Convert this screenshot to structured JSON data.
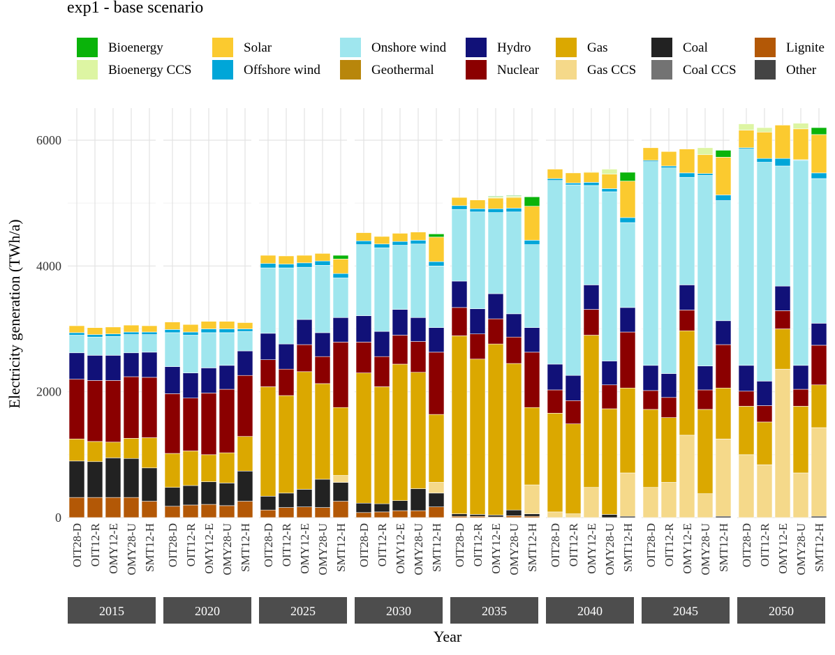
{
  "chart_data": {
    "type": "bar",
    "stacked": true,
    "title": "exp1 - base scenario",
    "xlabel": "Year",
    "ylabel": "Electricity generation (TWh/a)",
    "ylim": [
      0,
      6500
    ],
    "yticks": [
      0,
      2000,
      4000,
      6000
    ],
    "legend_position": "top",
    "facets": [
      "2015",
      "2020",
      "2025",
      "2030",
      "2035",
      "2040",
      "2045",
      "2050"
    ],
    "models": [
      "OIT28-D",
      "OIT12-R",
      "OMY12-E",
      "OMY28-U",
      "SMT12-H"
    ],
    "series": [
      {
        "name": "Lignite",
        "color": "#b35806"
      },
      {
        "name": "Coal",
        "color": "#222222"
      },
      {
        "name": "Gas CCS",
        "color": "#f5d98a"
      },
      {
        "name": "Gas",
        "color": "#dba800"
      },
      {
        "name": "Nuclear",
        "color": "#8b0000"
      },
      {
        "name": "Hydro",
        "color": "#111178"
      },
      {
        "name": "Geothermal",
        "color": "#b8860b"
      },
      {
        "name": "Onshore wind",
        "color": "#9fe6ee"
      },
      {
        "name": "Offshore wind",
        "color": "#00a6d8"
      },
      {
        "name": "Solar",
        "color": "#fbca2f"
      },
      {
        "name": "Bioenergy CCS",
        "color": "#ddf5a3"
      },
      {
        "name": "Bioenergy",
        "color": "#0ab30a"
      },
      {
        "name": "Coal CCS",
        "color": "#737373"
      },
      {
        "name": "Other",
        "color": "#444444"
      }
    ],
    "stack_order": [
      "Lignite",
      "Coal",
      "Gas CCS",
      "Gas",
      "Nuclear",
      "Hydro",
      "Onshore wind",
      "Offshore wind",
      "Solar",
      "Bioenergy CCS",
      "Bioenergy"
    ],
    "values": {
      "2015": {
        "OIT28-D": {
          "Lignite": 320,
          "Coal": 580,
          "Gas": 350,
          "Nuclear": 950,
          "Hydro": 420,
          "Onshore wind": 280,
          "Offshore wind": 40,
          "Solar": 110
        },
        "OIT12-R": {
          "Lignite": 320,
          "Coal": 570,
          "Gas": 320,
          "Nuclear": 970,
          "Hydro": 400,
          "Onshore wind": 290,
          "Offshore wind": 40,
          "Solar": 110
        },
        "OMY12-E": {
          "Lignite": 320,
          "Coal": 630,
          "Gas": 250,
          "Nuclear": 980,
          "Hydro": 400,
          "Onshore wind": 300,
          "Offshore wind": 40,
          "Solar": 110
        },
        "OMY28-U": {
          "Lignite": 320,
          "Coal": 620,
          "Gas": 320,
          "Nuclear": 980,
          "Hydro": 380,
          "Onshore wind": 290,
          "Offshore wind": 40,
          "Solar": 110
        },
        "SMT12-H": {
          "Lignite": 260,
          "Coal": 530,
          "Gas": 480,
          "Nuclear": 960,
          "Hydro": 400,
          "Onshore wind": 280,
          "Offshore wind": 40,
          "Solar": 100
        }
      },
      "2020": {
        "OIT28-D": {
          "Lignite": 180,
          "Coal": 300,
          "Gas": 540,
          "Nuclear": 950,
          "Hydro": 430,
          "Onshore wind": 540,
          "Offshore wind": 50,
          "Solar": 120
        },
        "OIT12-R": {
          "Lignite": 200,
          "Coal": 310,
          "Gas": 550,
          "Nuclear": 840,
          "Hydro": 400,
          "Onshore wind": 600,
          "Offshore wind": 50,
          "Solar": 120
        },
        "OMY12-E": {
          "Lignite": 210,
          "Coal": 360,
          "Gas": 430,
          "Nuclear": 980,
          "Hydro": 400,
          "Onshore wind": 560,
          "Offshore wind": 60,
          "Solar": 120
        },
        "OMY28-U": {
          "Lignite": 190,
          "Coal": 360,
          "Gas": 480,
          "Nuclear": 1010,
          "Hydro": 380,
          "Onshore wind": 520,
          "Offshore wind": 60,
          "Solar": 120
        },
        "SMT12-H": {
          "Lignite": 260,
          "Coal": 480,
          "Gas": 550,
          "Nuclear": 970,
          "Hydro": 390,
          "Onshore wind": 310,
          "Offshore wind": 40,
          "Solar": 100
        }
      },
      "2025": {
        "OIT28-D": {
          "Lignite": 120,
          "Coal": 220,
          "Gas": 1740,
          "Nuclear": 430,
          "Hydro": 420,
          "Onshore wind": 1040,
          "Offshore wind": 70,
          "Solar": 130
        },
        "OIT12-R": {
          "Lignite": 160,
          "Coal": 230,
          "Gas": 1550,
          "Nuclear": 420,
          "Hydro": 400,
          "Onshore wind": 1210,
          "Offshore wind": 60,
          "Solar": 130
        },
        "OMY12-E": {
          "Lignite": 170,
          "Coal": 280,
          "Gas": 1870,
          "Nuclear": 430,
          "Hydro": 400,
          "Onshore wind": 830,
          "Offshore wind": 70,
          "Solar": 120
        },
        "OMY28-U": {
          "Lignite": 160,
          "Coal": 450,
          "Gas": 1520,
          "Nuclear": 430,
          "Hydro": 380,
          "Onshore wind": 1070,
          "Offshore wind": 70,
          "Solar": 120
        },
        "SMT12-H": {
          "Lignite": 260,
          "Coal": 300,
          "Gas Capacity": 0,
          "Gas CCS": 110,
          "Gas": 1080,
          "Nuclear": 1040,
          "Hydro": 390,
          "Onshore wind": 630,
          "Offshore wind": 70,
          "Solar": 230,
          "Bioenergy": 60
        }
      },
      "2030": {
        "OIT28-D": {
          "Lignite": 80,
          "Coal": 150,
          "Gas": 2070,
          "Nuclear": 490,
          "Hydro": 420,
          "Onshore wind": 1130,
          "Offshore wind": 60,
          "Solar": 130
        },
        "OIT12-R": {
          "Lignite": 90,
          "Coal": 130,
          "Gas": 1860,
          "Nuclear": 480,
          "Hydro": 400,
          "Onshore wind": 1330,
          "Offshore wind": 60,
          "Solar": 120
        },
        "OMY12-E": {
          "Lignite": 110,
          "Coal": 160,
          "Gas": 2170,
          "Nuclear": 460,
          "Hydro": 410,
          "Onshore wind": 1020,
          "Offshore wind": 60,
          "Solar": 130
        },
        "OMY28-U": {
          "Lignite": 110,
          "Coal": 350,
          "Gas": 1850,
          "Nuclear": 490,
          "Hydro": 380,
          "Onshore wind": 1170,
          "Offshore wind": 60,
          "Solar": 130
        },
        "SMT12-H": {
          "Lignite": 170,
          "Coal": 220,
          "Gas CCS": 170,
          "Gas": 1080,
          "Nuclear": 990,
          "Hydro": 390,
          "Onshore wind": 980,
          "Offshore wind": 70,
          "Solar": 390,
          "Bioenergy": 50
        }
      },
      "2035": {
        "OIT28-D": {
          "Lignite": 20,
          "Coal": 40,
          "Gas": 2830,
          "Nuclear": 450,
          "Hydro": 420,
          "Onshore wind": 1140,
          "Offshore wind": 60,
          "Solar": 130
        },
        "OIT12-R": {
          "Lignite": 20,
          "Coal": 30,
          "Gas": 2470,
          "Nuclear": 400,
          "Hydro": 400,
          "Onshore wind": 1540,
          "Offshore wind": 50,
          "Solar": 140
        },
        "OMY12-E": {
          "Lignite": 10,
          "Coal": 30,
          "Gas": 2720,
          "Nuclear": 400,
          "Hydro": 400,
          "Onshore wind": 1290,
          "Offshore wind": 60,
          "Solar": 170,
          "Bioenergy CCS": 20,
          "Bioenergy": 10
        },
        "OMY28-U": {
          "Lignite": 30,
          "Coal": 90,
          "Gas": 2330,
          "Nuclear": 420,
          "Hydro": 370,
          "Onshore wind": 1620,
          "Offshore wind": 60,
          "Solar": 170,
          "Bioenergy CCS": 20,
          "Bioenergy": 10
        },
        "SMT12-H": {
          "Lignite": 20,
          "Coal": 40,
          "Gas CCS": 460,
          "Gas": 1230,
          "Nuclear": 880,
          "Hydro": 390,
          "Onshore wind": 1320,
          "Offshore wind": 70,
          "Solar": 540,
          "Bioenergy": 150
        }
      },
      "2040": {
        "OIT28-D": {
          "Gas CCS": 90,
          "Gas": 1570,
          "Nuclear": 370,
          "Hydro": 410,
          "Onshore wind": 2920,
          "Offshore wind": 30,
          "Solar": 150
        },
        "OIT12-R": {
          "Gas CCS": 60,
          "Gas": 1430,
          "Nuclear": 370,
          "Hydro": 400,
          "Onshore wind": 3030,
          "Offshore wind": 30,
          "Solar": 160
        },
        "OMY12-E": {
          "Gas CCS": 480,
          "Gas": 2420,
          "Nuclear": 410,
          "Hydro": 390,
          "Onshore wind": 1580,
          "Offshore wind": 50,
          "Solar": 160,
          "Bioenergy CCS": 10
        },
        "OMY28-U": {
          "Coal": 50,
          "Gas": 1680,
          "Nuclear": 380,
          "Hydro": 380,
          "Onshore wind": 2690,
          "Offshore wind": 50,
          "Solar": 230,
          "Bioenergy CCS": 80
        },
        "SMT12-H": {
          "Coal": 20,
          "Gas CCS": 690,
          "Gas": 1350,
          "Nuclear": 890,
          "Hydro": 390,
          "Onshore wind": 1350,
          "Offshore wind": 80,
          "Solar": 580,
          "Bioenergy": 140
        }
      },
      "2045": {
        "OIT28-D": {
          "Gas CCS": 480,
          "Gas": 1240,
          "Nuclear": 300,
          "Hydro": 400,
          "Onshore wind": 3240,
          "Offshore wind": 20,
          "Solar": 200
        },
        "OIT12-R": {
          "Gas CCS": 560,
          "Gas": 1030,
          "Nuclear": 320,
          "Hydro": 380,
          "Onshore wind": 3270,
          "Offshore wind": 30,
          "Solar": 230
        },
        "OMY12-E": {
          "Gas CCS": 1310,
          "Gas": 1660,
          "Nuclear": 330,
          "Hydro": 400,
          "Onshore wind": 1710,
          "Offshore wind": 70,
          "Solar": 380
        },
        "OMY28-U": {
          "Gas CCS": 380,
          "Gas": 1340,
          "Nuclear": 310,
          "Hydro": 380,
          "Onshore wind": 3030,
          "Offshore wind": 30,
          "Solar": 300,
          "Bioenergy CCS": 110
        },
        "SMT12-H": {
          "Coal": 20,
          "Gas CCS": 1230,
          "Gas": 810,
          "Nuclear": 690,
          "Hydro": 380,
          "Onshore wind": 1910,
          "Offshore wind": 90,
          "Solar": 600,
          "Bioenergy": 110
        }
      },
      "2050": {
        "OIT28-D": {
          "Gas CCS": 1000,
          "Gas": 770,
          "Nuclear": 240,
          "Hydro": 410,
          "Onshore wind": 3440,
          "Offshore wind": 20,
          "Solar": 280,
          "Bioenergy CCS": 100
        },
        "OIT12-R": {
          "Gas CCS": 840,
          "Gas": 680,
          "Nuclear": 260,
          "Hydro": 390,
          "Onshore wind": 3480,
          "Offshore wind": 60,
          "Solar": 420,
          "Bioenergy CCS": 70
        },
        "OMY12-E": {
          "Gas CCS": 2360,
          "Gas": 640,
          "Nuclear": 290,
          "Hydro": 390,
          "Onshore wind": 1910,
          "Offshore wind": 120,
          "Solar": 530
        },
        "OMY28-U": {
          "Gas CCS": 710,
          "Gas": 1060,
          "Nuclear": 270,
          "Hydro": 380,
          "Onshore wind": 3260,
          "Offshore wind": 10,
          "Solar": 490,
          "Bioenergy CCS": 90
        },
        "SMT12-H": {
          "Coal": 20,
          "Gas CCS": 1410,
          "Gas": 680,
          "Nuclear": 630,
          "Hydro": 350,
          "Onshore wind": 2300,
          "Offshore wind": 90,
          "Solar": 610,
          "Bioenergy": 110
        }
      }
    }
  }
}
